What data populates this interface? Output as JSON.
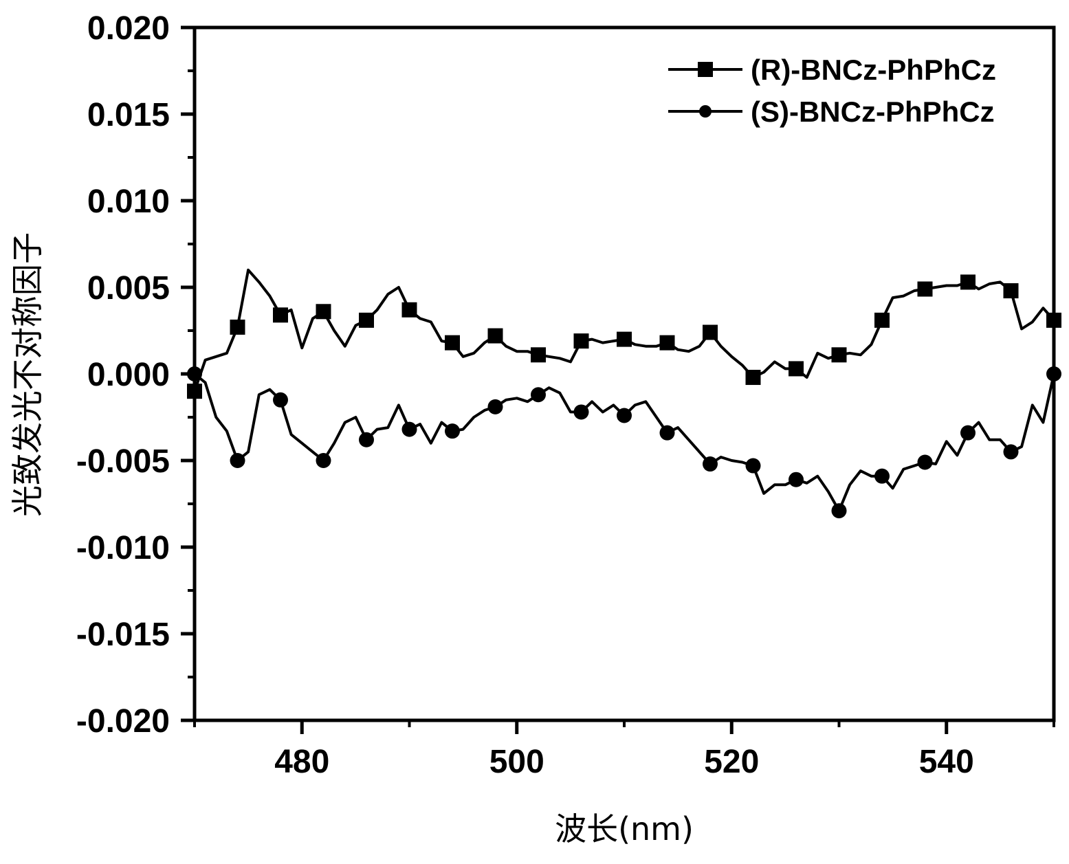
{
  "chart_data": {
    "type": "line",
    "title": "",
    "xlabel": "波长(nm)",
    "ylabel": "光致发光不对称因子",
    "xlim": [
      470,
      550
    ],
    "ylim": [
      -0.02,
      0.02
    ],
    "x_ticks": [
      480,
      500,
      520,
      540
    ],
    "x_tick_labels": [
      "480",
      "500",
      "520",
      "540"
    ],
    "y_ticks": [
      0.02,
      0.015,
      0.01,
      0.005,
      0.0,
      -0.005,
      -0.01,
      -0.015,
      -0.02
    ],
    "y_tick_labels": [
      "0.020",
      "0.015",
      "0.010",
      "0.005",
      "0.000",
      "-0.005",
      "-0.010",
      "-0.015",
      "-0.020"
    ],
    "grid": false,
    "legend_position": "top-right",
    "series": [
      {
        "name": "(R)-BNCz-PhPhCz",
        "marker": "square",
        "color": "#000000",
        "x": [
          470,
          471,
          472,
          473,
          474,
          475,
          476,
          477,
          478,
          479,
          480,
          481,
          482,
          483,
          484,
          485,
          486,
          487,
          488,
          489,
          490,
          491,
          492,
          493,
          494,
          495,
          496,
          497,
          498,
          499,
          500,
          501,
          502,
          503,
          504,
          505,
          506,
          507,
          508,
          509,
          510,
          511,
          512,
          513,
          514,
          515,
          516,
          517,
          518,
          519,
          520,
          521,
          522,
          523,
          524,
          525,
          526,
          527,
          528,
          529,
          530,
          531,
          532,
          533,
          534,
          535,
          536,
          537,
          538,
          539,
          540,
          541,
          542,
          543,
          544,
          545,
          546,
          547,
          548,
          549,
          550
        ],
        "y": [
          -0.001,
          0.0008,
          0.001,
          0.0012,
          0.0027,
          0.006,
          0.0053,
          0.0045,
          0.0034,
          0.0037,
          0.0015,
          0.0032,
          0.0036,
          0.0025,
          0.0016,
          0.0028,
          0.0031,
          0.0037,
          0.0046,
          0.005,
          0.0037,
          0.0032,
          0.003,
          0.0019,
          0.0018,
          0.001,
          0.0012,
          0.0018,
          0.0022,
          0.0016,
          0.0013,
          0.0013,
          0.0011,
          0.001,
          0.0009,
          0.0007,
          0.0019,
          0.002,
          0.0018,
          0.0019,
          0.002,
          0.0017,
          0.0016,
          0.0016,
          0.0018,
          0.0014,
          0.0013,
          0.0016,
          0.0024,
          0.0016,
          0.001,
          0.0005,
          -0.0002,
          0.0001,
          0.0007,
          0.0003,
          0.0003,
          -0.0002,
          0.0012,
          0.0009,
          0.0011,
          0.0012,
          0.0011,
          0.0017,
          0.0031,
          0.0044,
          0.0045,
          0.0048,
          0.0049,
          0.005,
          0.0051,
          0.0051,
          0.0053,
          0.0049,
          0.0052,
          0.0053,
          0.0048,
          0.0026,
          0.003,
          0.0038,
          0.0031
        ]
      },
      {
        "name": "(S)-BNCz-PhPhCz",
        "marker": "circle",
        "color": "#000000",
        "x": [
          470,
          471,
          472,
          473,
          474,
          475,
          476,
          477,
          478,
          479,
          480,
          481,
          482,
          483,
          484,
          485,
          486,
          487,
          488,
          489,
          490,
          491,
          492,
          493,
          494,
          495,
          496,
          497,
          498,
          499,
          500,
          501,
          502,
          503,
          504,
          505,
          506,
          507,
          508,
          509,
          510,
          511,
          512,
          513,
          514,
          515,
          516,
          517,
          518,
          519,
          520,
          521,
          522,
          523,
          524,
          525,
          526,
          527,
          528,
          529,
          530,
          531,
          532,
          533,
          534,
          535,
          536,
          537,
          538,
          539,
          540,
          541,
          542,
          543,
          544,
          545,
          546,
          547,
          548,
          549,
          550
        ],
        "y": [
          0.0,
          -0.0005,
          -0.0025,
          -0.0033,
          -0.005,
          -0.0045,
          -0.0012,
          -0.0009,
          -0.0015,
          -0.0035,
          -0.004,
          -0.0045,
          -0.005,
          -0.004,
          -0.0028,
          -0.0025,
          -0.0038,
          -0.0032,
          -0.0031,
          -0.0018,
          -0.0032,
          -0.0029,
          -0.004,
          -0.0028,
          -0.0033,
          -0.0032,
          -0.0025,
          -0.0021,
          -0.0019,
          -0.0015,
          -0.0014,
          -0.0016,
          -0.0012,
          -0.0008,
          -0.0011,
          -0.0022,
          -0.0022,
          -0.0016,
          -0.0022,
          -0.0018,
          -0.0024,
          -0.0018,
          -0.0016,
          -0.0025,
          -0.0034,
          -0.0031,
          -0.0038,
          -0.0045,
          -0.0052,
          -0.0048,
          -0.005,
          -0.0051,
          -0.0053,
          -0.0069,
          -0.0064,
          -0.0064,
          -0.0061,
          -0.0063,
          -0.0059,
          -0.0068,
          -0.0079,
          -0.0064,
          -0.0056,
          -0.0059,
          -0.0059,
          -0.0066,
          -0.0055,
          -0.0053,
          -0.0051,
          -0.0052,
          -0.0039,
          -0.0047,
          -0.0034,
          -0.0028,
          -0.0038,
          -0.0038,
          -0.0045,
          -0.0042,
          -0.0018,
          -0.0028,
          0.0
        ]
      }
    ]
  }
}
